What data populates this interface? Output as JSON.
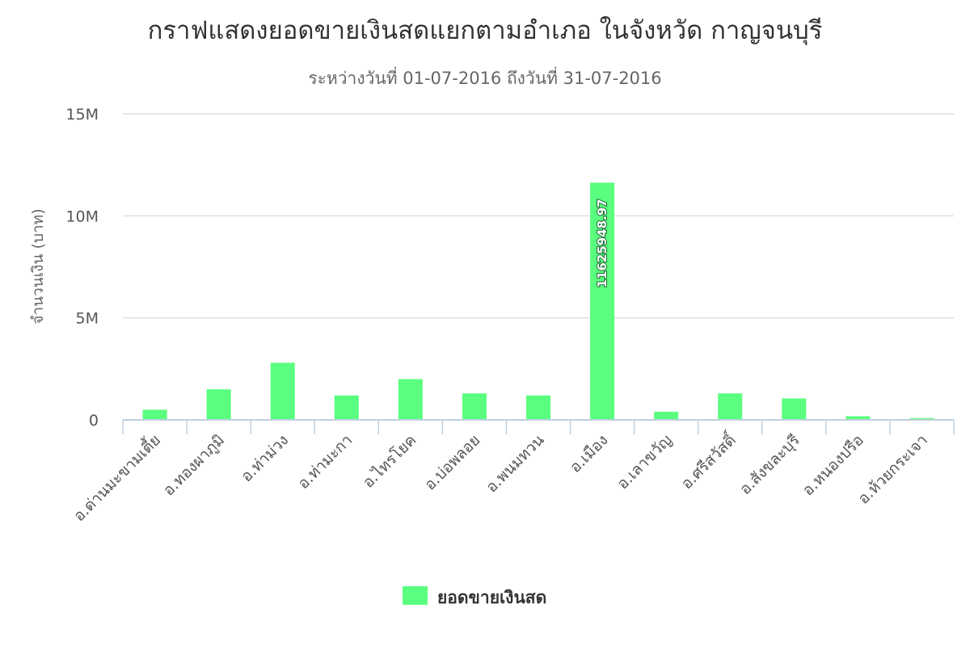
{
  "chart_data": {
    "type": "bar",
    "title": "กราฟแสดงยอดขายเงินสดแยกตามอำเภอ ในจังหวัด กาญจนบุรี",
    "subtitle": "ระหว่างวันที่ 01-07-2016 ถึงวันที่ 31-07-2016",
    "ylabel": "จำนวนเงิน (บาท)",
    "xlabel": "",
    "ylim": [
      0,
      15000000
    ],
    "yticks": [
      0,
      5000000,
      10000000,
      15000000
    ],
    "ytick_labels": [
      "0",
      "5M",
      "10M",
      "15M"
    ],
    "grid": true,
    "legend_position": "bottom-center",
    "categories": [
      "อ.ด่านมะขามเตี้ย",
      "อ.ทองผาภูมิ",
      "อ.ท่าม่วง",
      "อ.ท่ามะกา",
      "อ.ไทรโยค",
      "อ.บ่อพลอย",
      "อ.พนมทวน",
      "อ.เมือง",
      "อ.เลาขวัญ",
      "อ.ศรีสวัสดิ์",
      "อ.สังขละบุรี",
      "อ.หนองปรือ",
      "อ.ห้วยกระเจา"
    ],
    "series": [
      {
        "name": "ยอดขายเงินสด",
        "color": "#5aff7f",
        "values": [
          500000,
          1500000,
          2800000,
          1200000,
          2000000,
          1300000,
          1200000,
          11625948.97,
          400000,
          1300000,
          1050000,
          180000,
          90000
        ],
        "data_labels": [
          "",
          "",
          "",
          "",
          "",
          "",
          "",
          "11625948.97",
          "",
          "",
          "",
          "",
          ""
        ]
      }
    ]
  }
}
